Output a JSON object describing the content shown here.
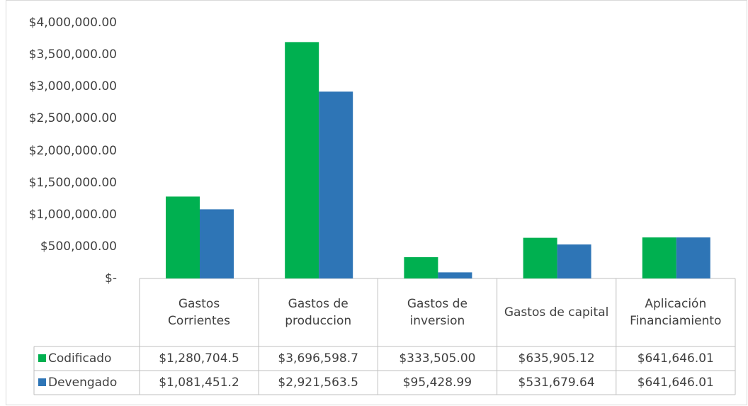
{
  "chart_data": {
    "type": "bar",
    "categories": [
      "Gastos Corrientes",
      "Gastos de produccion",
      "Gastos de inversion",
      "Gastos de capital",
      "Aplicación Financiamiento"
    ],
    "series": [
      {
        "name": "Codificado",
        "color": "#00b050",
        "values": [
          1280704.5,
          3696598.7,
          333505.0,
          635905.12,
          641646.01
        ],
        "value_labels": [
          "$1,280,704.5",
          "$3,696,598.7",
          "$333,505.00",
          "$635,905.12",
          "$641,646.01"
        ]
      },
      {
        "name": "Devengado",
        "color": "#2e75b6",
        "values": [
          1081451.2,
          2921563.5,
          95428.99,
          531679.64,
          641646.01
        ],
        "value_labels": [
          "$1,081,451.2",
          "$2,921,563.5",
          "$95,428.99",
          "$531,679.64",
          "$641,646.01"
        ]
      }
    ],
    "ylim": [
      0,
      4000000
    ],
    "yticks": [
      {
        "value": 0,
        "label": "$-"
      },
      {
        "value": 500000,
        "label": "$500,000.00"
      },
      {
        "value": 1000000,
        "label": "$1,000,000.00"
      },
      {
        "value": 1500000,
        "label": "$1,500,000.00"
      },
      {
        "value": 2000000,
        "label": "$2,000,000.00"
      },
      {
        "value": 2500000,
        "label": "$2,500,000.00"
      },
      {
        "value": 3000000,
        "label": "$3,000,000.00"
      },
      {
        "value": 3500000,
        "label": "$3,500,000.00"
      },
      {
        "value": 4000000,
        "label": "$4,000,000.00"
      }
    ],
    "grid": false
  }
}
